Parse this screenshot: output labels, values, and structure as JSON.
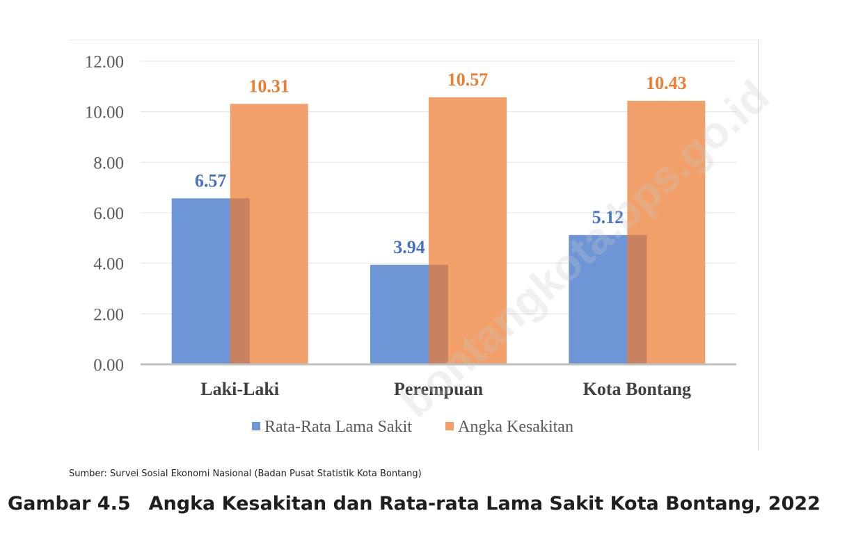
{
  "chart_data": {
    "type": "bar",
    "categories": [
      "Laki-Laki",
      "Perempuan",
      "Kota Bontang"
    ],
    "series": [
      {
        "name": "Rata-Rata Lama Sakit",
        "values": [
          6.57,
          3.94,
          5.12
        ],
        "color": "#6e95d6",
        "label_color": "#4472c4"
      },
      {
        "name": "Angka Kesakitan",
        "values": [
          10.31,
          10.57,
          10.43
        ],
        "color": "#f0a068",
        "label_color": "#ed7d31"
      }
    ],
    "data_labels": [
      [
        "6.57",
        "3.94",
        "5.12"
      ],
      [
        "10.31",
        "10.57",
        "10.43"
      ]
    ],
    "y_ticks": [
      "0.00",
      "2.00",
      "4.00",
      "6.00",
      "8.00",
      "10.00",
      "12.00"
    ],
    "ylim": [
      0,
      12
    ],
    "grid": true,
    "legend_position": "bottom",
    "overlap": true
  },
  "source_text": "Sumber: Survei Sosial Ekonomi Nasional (Badan Pusat Statistik Kota Bontang)",
  "caption": {
    "number": "Gambar 4.5",
    "title": "Angka Kesakitan dan Rata-rata Lama Sakit Kota Bontang, 2022"
  },
  "watermark": "bontangkota.bps.go.id"
}
